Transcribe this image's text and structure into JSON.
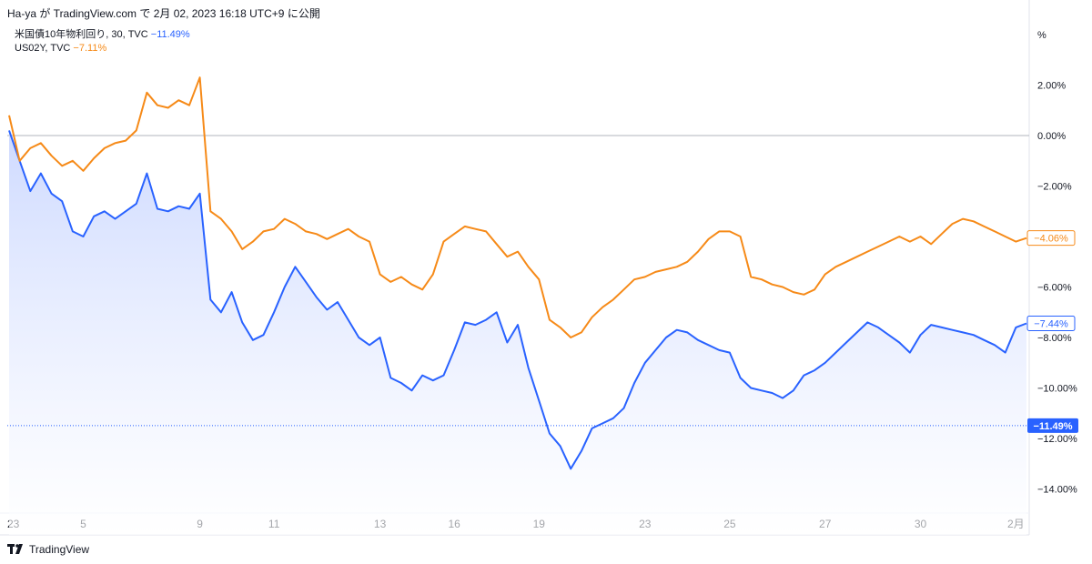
{
  "header": {
    "text": "Ha-ya が TradingView.com で 2月 02, 2023 16:18 UTC+9 に公開"
  },
  "legend": [
    {
      "name": "米国債10年物利回り, 30, TVC",
      "change": "−11.49%",
      "color": "#2962ff"
    },
    {
      "name": "US02Y, TVC",
      "change": "−7.11%",
      "color": "#f68a18"
    }
  ],
  "footer": {
    "brand": "TradingView",
    "logo_icon": "tradingview-logo-icon"
  },
  "colors": {
    "blue": "#2962ff",
    "orange": "#f68a18",
    "zero_line": "#b2b5be",
    "area_fill": "#e3e9ff"
  },
  "chart_data": {
    "type": "line",
    "y_unit": "%",
    "ylim": [
      -15,
      4
    ],
    "y_ticks": [
      2,
      0,
      -2,
      -4,
      -6,
      -8,
      -10,
      -12,
      -14
    ],
    "y_tick_labels": [
      "2.00%",
      "0.00%",
      "−2.00%",
      "−4.00%",
      "−6.00%",
      "−8.00%",
      "−10.00%",
      "−12.00%",
      "−14.00%"
    ],
    "y_axis_title": "%",
    "x_ticks": [
      "23",
      "5",
      "9",
      "11",
      "13",
      "16",
      "19",
      "23",
      "25",
      "27",
      "30",
      "2月"
    ],
    "x_tick_index": [
      0,
      7,
      18,
      25,
      35,
      42,
      50,
      60,
      68,
      77,
      86,
      95
    ],
    "x_range": [
      0,
      96
    ],
    "zero_line": 0,
    "series": [
      {
        "name": "米国債10年物利回り",
        "color": "#2962ff",
        "area": true,
        "last_label": "−7.44%",
        "values": [
          0.2,
          -1.0,
          -2.2,
          -1.5,
          -2.3,
          -2.6,
          -3.8,
          -4.0,
          -3.2,
          -3.0,
          -3.3,
          -3.0,
          -2.7,
          -1.5,
          -2.9,
          -3.0,
          -2.8,
          -2.9,
          -2.3,
          -6.5,
          -7.0,
          -6.2,
          -7.4,
          -8.1,
          -7.9,
          -7.0,
          -6.0,
          -5.2,
          -5.8,
          -6.4,
          -6.9,
          -6.6,
          -7.3,
          -8.0,
          -8.3,
          -8.0,
          -9.6,
          -9.8,
          -10.1,
          -9.5,
          -9.7,
          -9.5,
          -8.5,
          -7.4,
          -7.5,
          -7.3,
          -7.0,
          -8.2,
          -7.5,
          -9.2,
          -10.5,
          -11.8,
          -12.3,
          -13.2,
          -12.5,
          -11.6,
          -11.4,
          -11.2,
          -10.8,
          -9.8,
          -9.0,
          -8.5,
          -8.0,
          -7.7,
          -7.8,
          -8.1,
          -8.3,
          -8.5,
          -8.6,
          -9.6,
          -10.0,
          -10.1,
          -10.2,
          -10.4,
          -10.1,
          -9.5,
          -9.3,
          -9.0,
          -8.6,
          -8.2,
          -7.8,
          -7.4,
          -7.6,
          -7.9,
          -8.2,
          -8.6,
          -7.9,
          -7.5,
          -7.6,
          -7.7,
          -7.8,
          -7.9,
          -8.1,
          -8.3,
          -8.6,
          -7.6,
          -7.44
        ]
      },
      {
        "name": "US02Y",
        "color": "#f68a18",
        "area": false,
        "last_label": "−4.06%",
        "values": [
          0.8,
          -1.0,
          -0.5,
          -0.3,
          -0.8,
          -1.2,
          -1.0,
          -1.4,
          -0.9,
          -0.5,
          -0.3,
          -0.2,
          0.2,
          1.7,
          1.2,
          1.1,
          1.4,
          1.2,
          2.3,
          -3.0,
          -3.3,
          -3.8,
          -4.5,
          -4.2,
          -3.8,
          -3.7,
          -3.3,
          -3.5,
          -3.8,
          -3.9,
          -4.1,
          -3.9,
          -3.7,
          -4.0,
          -4.2,
          -5.5,
          -5.8,
          -5.6,
          -5.9,
          -6.1,
          -5.5,
          -4.2,
          -3.9,
          -3.6,
          -3.7,
          -3.8,
          -4.3,
          -4.8,
          -4.6,
          -5.2,
          -5.7,
          -7.3,
          -7.6,
          -8.0,
          -7.8,
          -7.2,
          -6.8,
          -6.5,
          -6.1,
          -5.7,
          -5.6,
          -5.4,
          -5.3,
          -5.2,
          -5.0,
          -4.6,
          -4.1,
          -3.8,
          -3.8,
          -4.0,
          -5.6,
          -5.7,
          -5.9,
          -6.0,
          -6.2,
          -6.3,
          -6.1,
          -5.5,
          -5.2,
          -5.0,
          -4.8,
          -4.6,
          -4.4,
          -4.2,
          -4.0,
          -4.2,
          -4.0,
          -4.3,
          -3.9,
          -3.5,
          -3.3,
          -3.4,
          -3.6,
          -3.8,
          -4.0,
          -4.2,
          -4.06
        ]
      }
    ],
    "reference_line": {
      "value": -11.49,
      "label": "−11.49%"
    }
  }
}
